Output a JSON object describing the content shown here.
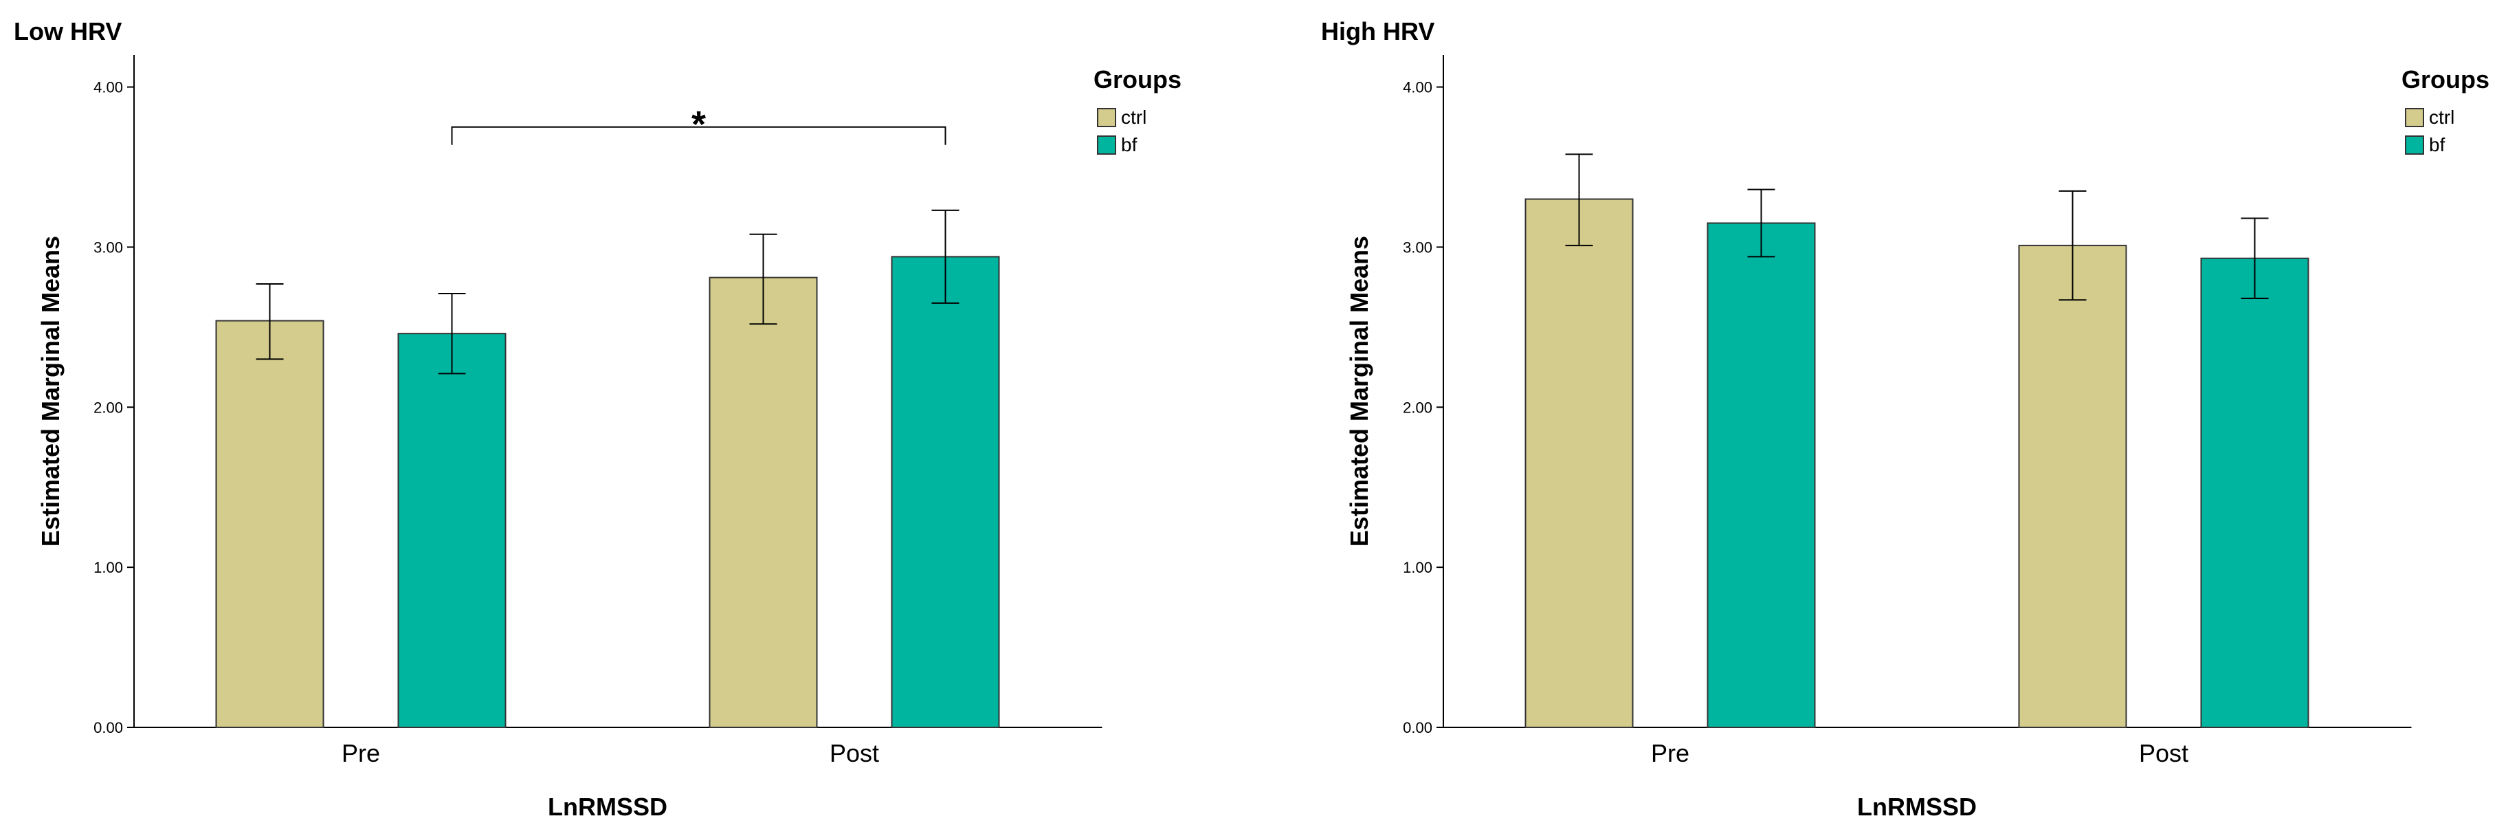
{
  "chart_data": [
    {
      "type": "bar",
      "title": "Low HRV",
      "xlabel": "LnRMSSD",
      "ylabel": "Estimated Marginal Means",
      "ylim": [
        0,
        4.2
      ],
      "yticks": [
        "0.00",
        "1.00",
        "2.00",
        "3.00",
        "4.00"
      ],
      "categories": [
        "Pre",
        "Post"
      ],
      "legend": {
        "title": "Groups",
        "position": "top-right"
      },
      "series": [
        {
          "name": "ctrl",
          "color": "#D4CC8C",
          "values": [
            2.54,
            2.81
          ],
          "error_low": [
            2.3,
            2.52
          ],
          "error_high": [
            2.77,
            3.08
          ]
        },
        {
          "name": "bf",
          "color": "#00B5A0",
          "values": [
            2.46,
            2.94
          ],
          "error_low": [
            2.21,
            2.65
          ],
          "error_high": [
            2.71,
            3.23
          ]
        }
      ],
      "significance": {
        "from_category": "Pre",
        "from_series": "bf",
        "to_category": "Post",
        "to_series": "bf",
        "y": 3.75,
        "label": "*"
      }
    },
    {
      "type": "bar",
      "title": "High HRV",
      "xlabel": "LnRMSSD",
      "ylabel": "Estimated Marginal Means",
      "ylim": [
        0,
        4.2
      ],
      "yticks": [
        "0.00",
        "1.00",
        "2.00",
        "3.00",
        "4.00"
      ],
      "categories": [
        "Pre",
        "Post"
      ],
      "legend": {
        "title": "Groups",
        "position": "top-right"
      },
      "series": [
        {
          "name": "ctrl",
          "color": "#D4CC8C",
          "values": [
            3.3,
            3.01
          ],
          "error_low": [
            3.01,
            2.67
          ],
          "error_high": [
            3.58,
            3.35
          ]
        },
        {
          "name": "bf",
          "color": "#00B5A0",
          "values": [
            3.15,
            2.93
          ],
          "error_low": [
            2.94,
            2.68
          ],
          "error_high": [
            3.36,
            3.18
          ]
        }
      ]
    }
  ]
}
